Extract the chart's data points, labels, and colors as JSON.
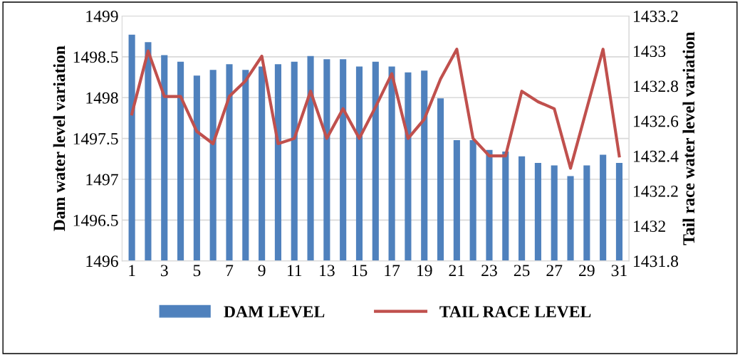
{
  "chart_data": {
    "type": "bar",
    "ylabel": "Dam water level variation",
    "y2label": "Tail race water level variation",
    "categories": [
      "1",
      null,
      "3",
      null,
      "5",
      null,
      "7",
      null,
      "9",
      null,
      "11",
      null,
      "13",
      null,
      "15",
      null,
      "17",
      null,
      "19",
      null,
      "21",
      null,
      "23",
      null,
      "25",
      null,
      "27",
      null,
      "29",
      null,
      "31"
    ],
    "series": [
      {
        "name": "DAM LEVEL",
        "color": "#4f81bd",
        "values": [
          1498.77,
          1498.68,
          1498.52,
          1498.44,
          1498.27,
          1498.34,
          1498.41,
          1498.34,
          1498.38,
          1498.41,
          1498.44,
          1498.51,
          1498.47,
          1498.47,
          1498.38,
          1498.44,
          1498.38,
          1498.31,
          1498.33,
          1497.99,
          1497.48,
          1497.48,
          1497.36,
          1497.34,
          1497.28,
          1497.2,
          1497.17,
          1497.04,
          1497.17,
          1497.3,
          1497.2
        ]
      },
      {
        "name": "TAIL RACE LEVEL",
        "type": "line",
        "axis": "y2",
        "color": "#c0504d",
        "values": [
          1432.64,
          1433.0,
          1432.74,
          1432.74,
          1432.54,
          1432.47,
          1432.74,
          1432.83,
          1432.97,
          1432.47,
          1432.5,
          1432.77,
          1432.5,
          1432.67,
          1432.5,
          1432.68,
          1432.87,
          1432.5,
          1432.61,
          1432.84,
          1433.01,
          1432.5,
          1432.4,
          1432.4,
          1432.77,
          1432.71,
          1432.67,
          1432.33,
          1432.67,
          1433.01,
          1432.4
        ]
      }
    ],
    "ylim": [
      1496,
      1499
    ],
    "yticks": [
      1496,
      1496.5,
      1497,
      1497.5,
      1498,
      1498.5,
      1499
    ],
    "y2lim": [
      1431.8,
      1433.2
    ],
    "y2ticks": [
      1431.8,
      1432,
      1432.2,
      1432.4,
      1432.6,
      1432.8,
      1433,
      1433.2
    ],
    "grid": "y",
    "legend": "bottom",
    "marker": "none",
    "line_style": "solid"
  }
}
